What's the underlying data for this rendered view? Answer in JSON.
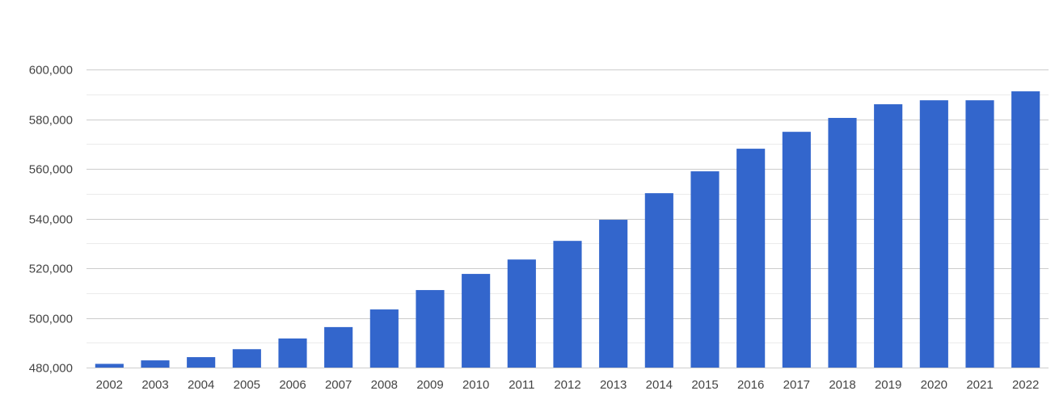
{
  "chart_data": {
    "type": "bar",
    "title": "",
    "xlabel": "",
    "ylabel": "",
    "categories": [
      "2002",
      "2003",
      "2004",
      "2005",
      "2006",
      "2007",
      "2008",
      "2009",
      "2010",
      "2011",
      "2012",
      "2013",
      "2014",
      "2015",
      "2016",
      "2017",
      "2018",
      "2019",
      "2020",
      "2021",
      "2022"
    ],
    "values": [
      481500,
      482900,
      484200,
      487400,
      491700,
      496300,
      503400,
      511200,
      517700,
      523500,
      531000,
      539500,
      550200,
      559000,
      568100,
      574900,
      580500,
      586000,
      587600,
      587600,
      591200
    ],
    "ylim": [
      480000,
      600000
    ],
    "y_ticks": [
      480000,
      500000,
      520000,
      540000,
      560000,
      580000,
      600000
    ],
    "y_tick_labels": [
      "480,000",
      "500,000",
      "520,000",
      "540,000",
      "560,000",
      "580,000",
      "600,000"
    ],
    "minor_grid_step": 10000,
    "bar_color": "#3366cc",
    "grid": true,
    "legend": "none"
  }
}
